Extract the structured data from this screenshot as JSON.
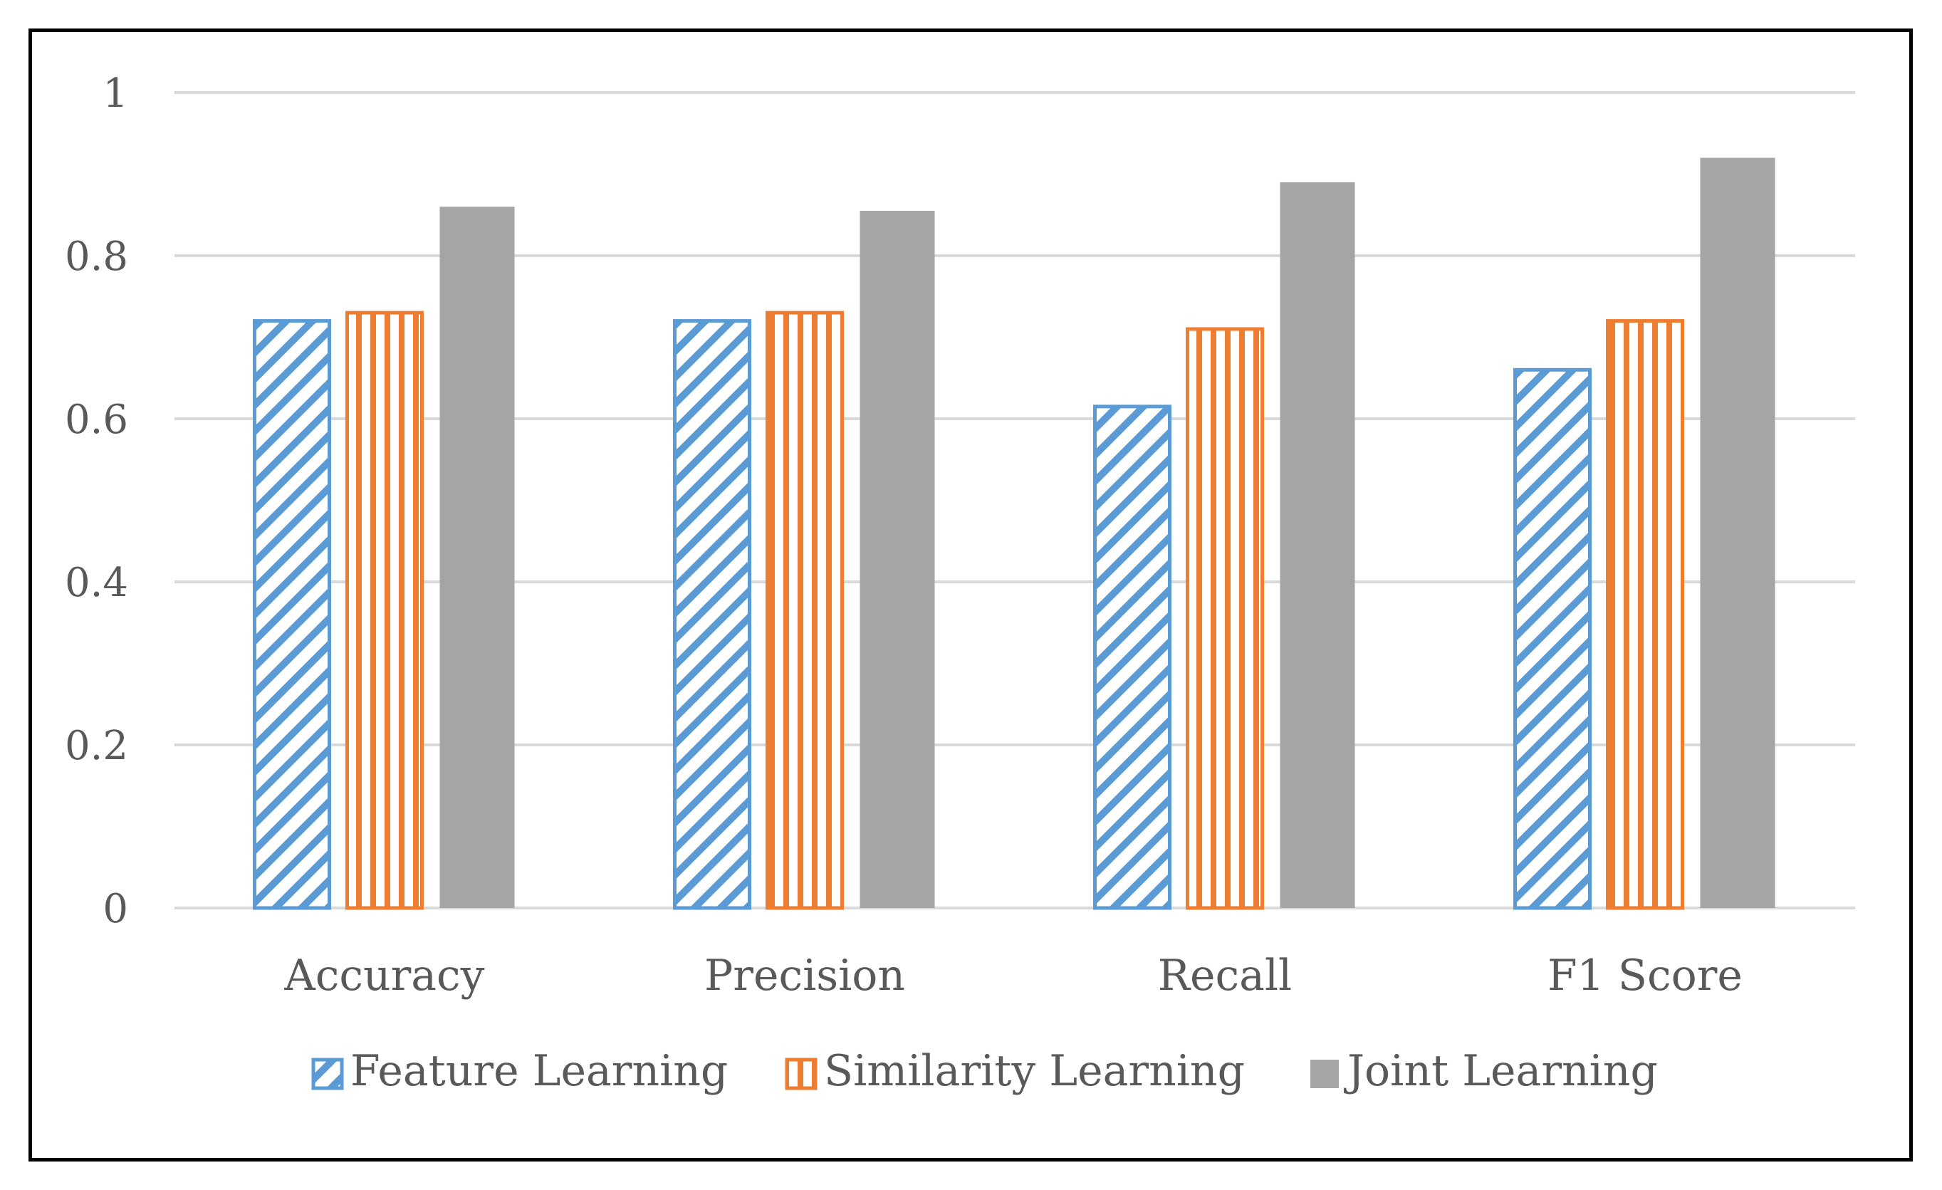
{
  "chart_data": {
    "type": "bar",
    "title": "",
    "xlabel": "",
    "ylabel": "",
    "ylim": [
      0,
      1
    ],
    "yticks": [
      {
        "value": 0,
        "label": "0"
      },
      {
        "value": 0.2,
        "label": "0.2"
      },
      {
        "value": 0.4,
        "label": "0.4"
      },
      {
        "value": 0.6,
        "label": "0.6"
      },
      {
        "value": 0.8,
        "label": "0.8"
      },
      {
        "value": 1,
        "label": "1"
      }
    ],
    "grid": true,
    "legend_position": "bottom",
    "categories": [
      "Accuracy",
      "Precision",
      "Recall",
      "F1 Score"
    ],
    "series": [
      {
        "name": "Feature Learning",
        "values": [
          0.72,
          0.72,
          0.615,
          0.66
        ],
        "color": "#5B9BD5",
        "pattern": "diagonal-hatch"
      },
      {
        "name": "Similarity Learning",
        "values": [
          0.73,
          0.73,
          0.71,
          0.72
        ],
        "color": "#ED7D31",
        "pattern": "vertical-hatch"
      },
      {
        "name": "Joint Learning",
        "values": [
          0.86,
          0.855,
          0.89,
          0.92
        ],
        "color": "#A5A5A5",
        "pattern": "solid"
      }
    ],
    "colors": {
      "gridline": "#D9D9D9",
      "text": "#595959",
      "frame": "#000000"
    }
  }
}
